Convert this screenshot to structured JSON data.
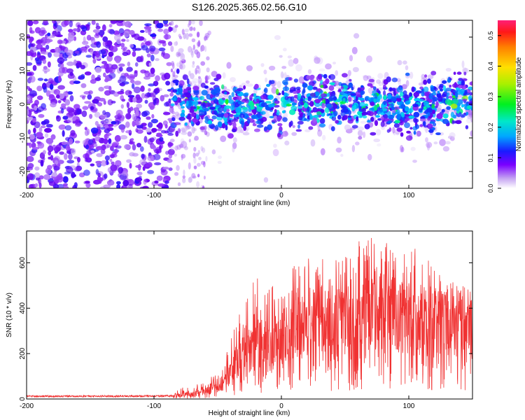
{
  "chart_data": [
    {
      "type": "heatmap",
      "title": "S126.2025.365.02.56.G10",
      "xlabel": "Height of straight line (km)",
      "ylabel": "Frequency (Hz)",
      "xlim": [
        -200,
        150
      ],
      "ylim": [
        -25,
        25
      ],
      "xticks": [
        -200,
        -100,
        0,
        100
      ],
      "xtick_labels": [
        "-200",
        "-100",
        "0",
        "100"
      ],
      "yticks": [
        -20,
        -10,
        0,
        10,
        20
      ],
      "ytick_labels": [
        "-20",
        "-10",
        "0",
        "10",
        "20"
      ],
      "colorbar": {
        "label": "Normalized spectral amplitude",
        "range": [
          0,
          0.55
        ],
        "ticks": [
          0.0,
          0.1,
          0.2,
          0.3,
          0.4,
          0.5
        ],
        "tick_labels": [
          "0.0",
          "0.1",
          "0.2",
          "0.3",
          "0.4",
          "0.5"
        ]
      },
      "regions": [
        {
          "x_range": [
            -200,
            -86
          ],
          "f_range": [
            -25,
            25
          ],
          "amplitude": "0.03-0.08",
          "pattern": "noise"
        },
        {
          "x_range": [
            -86,
            150
          ],
          "f_center": 0,
          "f_halfwidth": 8,
          "amplitude": "0.05-0.35",
          "pattern": "signal band"
        }
      ]
    },
    {
      "type": "line",
      "xlabel": "Height of straight line (km)",
      "ylabel": "SNR (10 * v/v)",
      "xlim": [
        -200,
        150
      ],
      "ylim": [
        0,
        740
      ],
      "xticks": [
        -200,
        -100,
        0,
        100
      ],
      "xtick_labels": [
        "-200",
        "-100",
        "0",
        "100"
      ],
      "yticks": [
        0,
        200,
        400,
        600
      ],
      "ytick_labels": [
        "0",
        "200",
        "400",
        "600"
      ],
      "color": "#f03232",
      "series": [
        {
          "name": "SNR",
          "x": [
            -200,
            -150,
            -100,
            -85,
            -75,
            -65,
            -55,
            -45,
            -40,
            -35,
            -30,
            -25,
            -20,
            -15,
            -10,
            -5,
            0,
            5,
            10,
            15,
            20,
            30,
            40,
            50,
            60,
            70,
            80,
            90,
            100,
            110,
            120,
            130,
            140,
            150
          ],
          "y": [
            12,
            12,
            13,
            14,
            18,
            25,
            40,
            70,
            110,
            160,
            200,
            230,
            250,
            250,
            245,
            260,
            270,
            290,
            300,
            320,
            340,
            350,
            340,
            330,
            340,
            360,
            350,
            360,
            355,
            345,
            340,
            340,
            345,
            350
          ],
          "y_max_envelope": [
            25,
            25,
            25,
            30,
            60,
            70,
            100,
            150,
            280,
            420,
            400,
            500,
            560,
            500,
            520,
            500,
            480,
            550,
            600,
            650,
            640,
            620,
            630,
            660,
            700,
            730,
            700,
            660,
            680,
            650,
            580,
            540,
            520,
            500
          ]
        }
      ]
    }
  ]
}
